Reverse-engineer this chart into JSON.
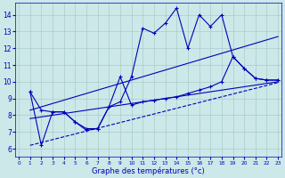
{
  "xlabel": "Graphe des températures (°c)",
  "bg_color": "#cce8e8",
  "line_color": "#0000bb",
  "grid_color": "#aacccc",
  "xlim": [
    -0.3,
    23.3
  ],
  "ylim": [
    5.5,
    14.7
  ],
  "yticks": [
    6,
    7,
    8,
    9,
    10,
    11,
    12,
    13,
    14
  ],
  "xticks": [
    0,
    1,
    2,
    3,
    4,
    5,
    6,
    7,
    8,
    9,
    10,
    11,
    12,
    13,
    14,
    15,
    16,
    17,
    18,
    19,
    20,
    21,
    22,
    23
  ],
  "line1_x": [
    1,
    2,
    3,
    4,
    5,
    6,
    7,
    8,
    9,
    10,
    11,
    12,
    13,
    14,
    15,
    16,
    17,
    18,
    19,
    20,
    21,
    22,
    23
  ],
  "line1_y": [
    9.4,
    8.3,
    8.2,
    8.2,
    7.6,
    7.1,
    7.2,
    8.5,
    8.8,
    10.3,
    13.2,
    12.9,
    13.5,
    14.4,
    12.0,
    14.0,
    13.3,
    14.0,
    11.5,
    10.8,
    10.2,
    10.1,
    10.1
  ],
  "line2_x": [
    1,
    2,
    3,
    4,
    5,
    6,
    7,
    8,
    9,
    10,
    11,
    12,
    13,
    14,
    15,
    16,
    17,
    18,
    19,
    20,
    21,
    22,
    23
  ],
  "line2_y": [
    9.4,
    6.2,
    8.2,
    8.2,
    7.6,
    7.2,
    7.2,
    8.5,
    10.3,
    8.6,
    8.8,
    8.9,
    9.0,
    9.1,
    9.3,
    9.5,
    9.7,
    10.0,
    11.5,
    10.8,
    10.2,
    10.1,
    10.1
  ],
  "trend1_x": [
    1,
    23
  ],
  "trend1_y": [
    8.3,
    12.7
  ],
  "trend2_x": [
    1,
    23
  ],
  "trend2_y": [
    7.8,
    10.0
  ],
  "trend3_x": [
    1,
    23
  ],
  "trend3_y": [
    6.2,
    9.95
  ]
}
